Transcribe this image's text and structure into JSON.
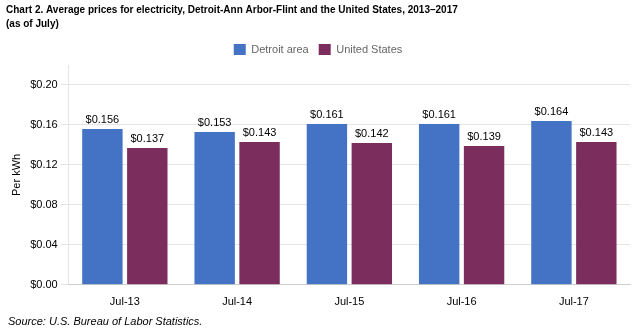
{
  "chart_data": {
    "type": "bar",
    "title": "Chart 2. Average prices for electricity, Detroit-Ann Arbor-Flint and the United States, 2013–2017",
    "subtitle": "(as of July)",
    "ylabel": "Per kWh",
    "source": "Source: U.S. Bureau of Labor Statistics.",
    "categories": [
      "Jul-13",
      "Jul-14",
      "Jul-15",
      "Jul-16",
      "Jul-17"
    ],
    "series": [
      {
        "name": "Detroit area",
        "color": "#4472C4",
        "values": [
          0.156,
          0.153,
          0.161,
          0.161,
          0.164
        ],
        "value_labels": [
          "$0.156",
          "$0.153",
          "$0.161",
          "$0.161",
          "$0.164"
        ]
      },
      {
        "name": "United States",
        "color": "#7B2D5E",
        "values": [
          0.137,
          0.143,
          0.142,
          0.139,
          0.143
        ],
        "value_labels": [
          "$0.137",
          "$0.143",
          "$0.142",
          "$0.139",
          "$0.143"
        ]
      }
    ],
    "ylim": [
      0,
      0.22
    ],
    "yticks": [
      {
        "value": 0.0,
        "label": "$0.00"
      },
      {
        "value": 0.04,
        "label": "$0.04"
      },
      {
        "value": 0.08,
        "label": "$0.08"
      },
      {
        "value": 0.12,
        "label": "$0.12"
      },
      {
        "value": 0.16,
        "label": "$0.16"
      },
      {
        "value": 0.2,
        "label": "$0.20"
      }
    ],
    "grid": true,
    "legend": "top",
    "data_labels": true
  }
}
